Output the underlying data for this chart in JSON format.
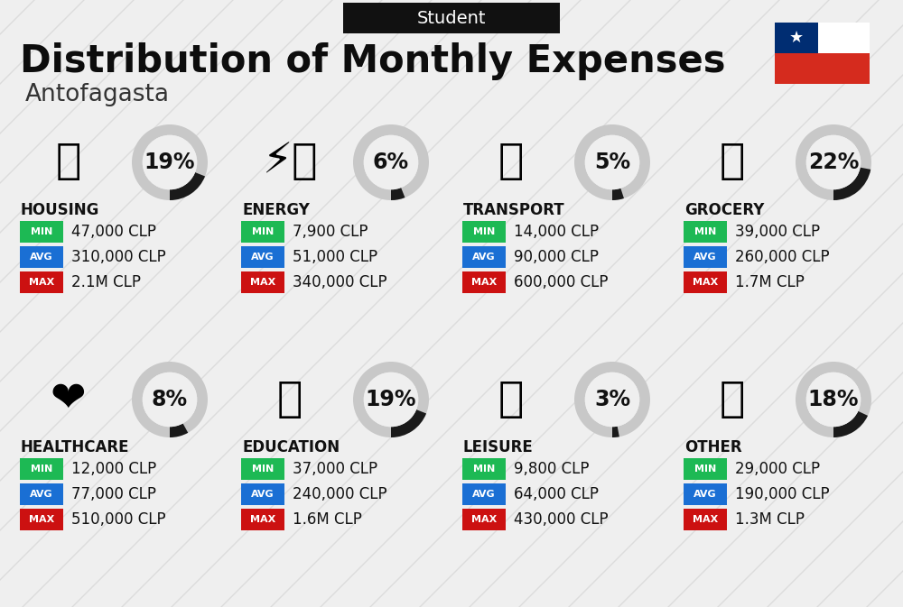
{
  "title": "Distribution of Monthly Expenses",
  "subtitle": "Antofagasta",
  "header_label": "Student",
  "background_color": "#efefef",
  "categories": [
    {
      "name": "HOUSING",
      "pct": 19,
      "min": "47,000 CLP",
      "avg": "310,000 CLP",
      "max": "2.1M CLP",
      "row": 0,
      "col": 0
    },
    {
      "name": "ENERGY",
      "pct": 6,
      "min": "7,900 CLP",
      "avg": "51,000 CLP",
      "max": "340,000 CLP",
      "row": 0,
      "col": 1
    },
    {
      "name": "TRANSPORT",
      "pct": 5,
      "min": "14,000 CLP",
      "avg": "90,000 CLP",
      "max": "600,000 CLP",
      "row": 0,
      "col": 2
    },
    {
      "name": "GROCERY",
      "pct": 22,
      "min": "39,000 CLP",
      "avg": "260,000 CLP",
      "max": "1.7M CLP",
      "row": 0,
      "col": 3
    },
    {
      "name": "HEALTHCARE",
      "pct": 8,
      "min": "12,000 CLP",
      "avg": "77,000 CLP",
      "max": "510,000 CLP",
      "row": 1,
      "col": 0
    },
    {
      "name": "EDUCATION",
      "pct": 19,
      "min": "37,000 CLP",
      "avg": "240,000 CLP",
      "max": "1.6M CLP",
      "row": 1,
      "col": 1
    },
    {
      "name": "LEISURE",
      "pct": 3,
      "min": "9,800 CLP",
      "avg": "64,000 CLP",
      "max": "430,000 CLP",
      "row": 1,
      "col": 2
    },
    {
      "name": "OTHER",
      "pct": 18,
      "min": "29,000 CLP",
      "avg": "190,000 CLP",
      "max": "1.3M CLP",
      "row": 1,
      "col": 3
    }
  ],
  "min_color": "#1db954",
  "avg_color": "#1a6fd4",
  "max_color": "#cc1111",
  "ring_dark": "#1a1a1a",
  "ring_light": "#c8c8c8",
  "header_bg": "#111111",
  "header_fg": "#ffffff",
  "title_color": "#0d0d0d",
  "subtitle_color": "#333333"
}
